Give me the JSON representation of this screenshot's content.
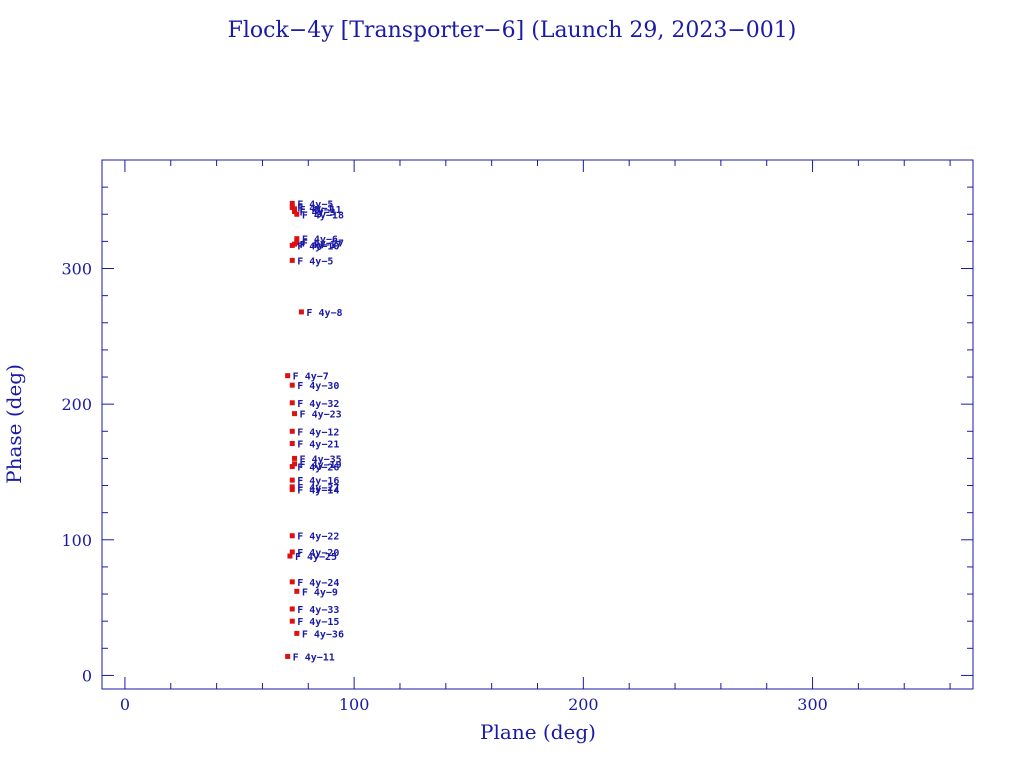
{
  "colors": {
    "axis": "#1a1aa6",
    "marker": "#dd1111",
    "label": "#1a1aa6",
    "background": "#ffffff"
  },
  "chart_data": {
    "type": "scatter",
    "title": "Flock−4y [Transporter−6] (Launch 29, 2023−001)",
    "xlabel": "Plane (deg)",
    "ylabel": "Phase (deg)",
    "xlim": [
      -10,
      370
    ],
    "ylim": [
      -10,
      380
    ],
    "xticks": [
      0,
      100,
      200,
      300
    ],
    "yticks": [
      0,
      100,
      200,
      300
    ],
    "grid": false,
    "legend": "none",
    "points": [
      {
        "label": "F 4y−5",
        "x": 73,
        "y": 348
      },
      {
        "label": "F 4y−1",
        "x": 73,
        "y": 345
      },
      {
        "label": "F 4y−11",
        "x": 74,
        "y": 344
      },
      {
        "label": "F 4y−3",
        "x": 74,
        "y": 342
      },
      {
        "label": "F 4y−18",
        "x": 75,
        "y": 340
      },
      {
        "label": "F 4y−6",
        "x": 75,
        "y": 322
      },
      {
        "label": "F 4y−27",
        "x": 75,
        "y": 319
      },
      {
        "label": "F 4y−17",
        "x": 74,
        "y": 318
      },
      {
        "label": "F 4y−10",
        "x": 73,
        "y": 317
      },
      {
        "label": "F 4y−5",
        "x": 73,
        "y": 306
      },
      {
        "label": "F 4y−8",
        "x": 77,
        "y": 268
      },
      {
        "label": "F 4y−7",
        "x": 71,
        "y": 221
      },
      {
        "label": "F 4y−30",
        "x": 73,
        "y": 214
      },
      {
        "label": "F 4y−32",
        "x": 73,
        "y": 201
      },
      {
        "label": "F 4y−23",
        "x": 74,
        "y": 193
      },
      {
        "label": "F 4y−12",
        "x": 73,
        "y": 180
      },
      {
        "label": "F 4y−21",
        "x": 73,
        "y": 171
      },
      {
        "label": "F 4y−35",
        "x": 74,
        "y": 160
      },
      {
        "label": "F 4y−19",
        "x": 74,
        "y": 156
      },
      {
        "label": "F 4y−26",
        "x": 73,
        "y": 154
      },
      {
        "label": "F 4y−16",
        "x": 73,
        "y": 144
      },
      {
        "label": "F 4y−27",
        "x": 73,
        "y": 139
      },
      {
        "label": "F 4y−14",
        "x": 73,
        "y": 137
      },
      {
        "label": "F 4y−22",
        "x": 73,
        "y": 103
      },
      {
        "label": "F 4y−20",
        "x": 73,
        "y": 91
      },
      {
        "label": "F 4y−25",
        "x": 72,
        "y": 88
      },
      {
        "label": "F 4y−24",
        "x": 73,
        "y": 69
      },
      {
        "label": "F 4y−9",
        "x": 75,
        "y": 62
      },
      {
        "label": "F 4y−33",
        "x": 73,
        "y": 49
      },
      {
        "label": "F 4y−15",
        "x": 73,
        "y": 40
      },
      {
        "label": "F 4y−36",
        "x": 75,
        "y": 31
      },
      {
        "label": "F 4y−11",
        "x": 71,
        "y": 14
      }
    ]
  }
}
